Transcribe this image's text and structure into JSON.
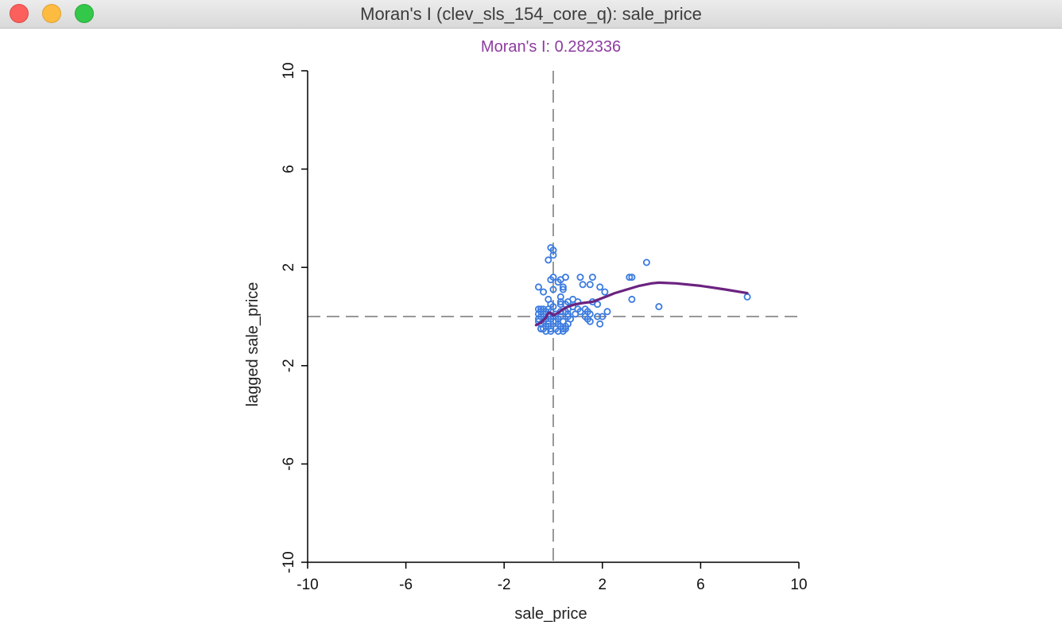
{
  "window": {
    "title": "Moran's I (clev_sls_154_core_q): sale_price",
    "controls": [
      "close",
      "minimize",
      "zoom"
    ]
  },
  "chart_data": {
    "type": "scatter",
    "title": "Moran's I: 0.282336",
    "xlabel": "sale_price",
    "ylabel": "lagged sale_price",
    "xlim": [
      -10,
      10
    ],
    "ylim": [
      -10,
      10
    ],
    "xticks": [
      -10,
      -6,
      -2,
      2,
      6,
      10
    ],
    "yticks": [
      -10,
      -6,
      -2,
      2,
      6,
      10
    ],
    "reference_lines": {
      "x": 0,
      "y": 0,
      "style": "dashed"
    },
    "grid": false,
    "legend": "none",
    "colors": {
      "points": "#3b7be0",
      "smoother": "#6b2380",
      "title": "#8e3ba0",
      "reference": "#777777"
    },
    "series": [
      {
        "kind": "points",
        "x": [
          -0.1,
          0.0,
          -0.2,
          0.0,
          0.5,
          0.0,
          -0.1,
          0.3,
          0.2,
          -0.6,
          0.4,
          0.4,
          -0.4,
          0.0,
          -0.2,
          0.3,
          1.1,
          1.6,
          1.5,
          3.1,
          3.2,
          3.8,
          1.2,
          1.9,
          2.1,
          3.2,
          4.3,
          7.9,
          1.4,
          1.6,
          1.8,
          1.1,
          1.3,
          1.5,
          2.0,
          2.2,
          0.3,
          0.8,
          1.0,
          0.5,
          0.8,
          1.0,
          0.6,
          0.3,
          0.9,
          1.3,
          0.6,
          0.7,
          1.4,
          1.5,
          1.9,
          1.8,
          -0.5,
          -0.2,
          0.0,
          0.3,
          0.6,
          -0.1,
          -0.6,
          -0.6,
          -0.6,
          -0.5,
          -0.5,
          -0.5,
          -0.4,
          -0.4,
          -0.4,
          -0.3,
          -0.3,
          -0.3,
          -0.2,
          -0.2,
          -0.1,
          -0.1,
          0.0,
          0.0,
          0.1,
          0.1,
          0.2,
          0.2,
          0.3,
          0.4,
          0.5,
          0.5,
          0.6,
          0.6,
          -0.6,
          -0.5,
          -0.4,
          -0.2,
          -0.1,
          0.1,
          0.3,
          0.4,
          -0.5,
          -0.3,
          -0.1,
          0.2,
          0.4,
          0.5
        ],
        "y": [
          2.8,
          2.7,
          2.3,
          2.5,
          1.6,
          1.6,
          1.5,
          1.5,
          1.4,
          1.2,
          1.2,
          1.1,
          1.0,
          1.1,
          0.7,
          0.8,
          1.6,
          1.6,
          1.3,
          1.6,
          1.6,
          2.2,
          1.3,
          1.2,
          1.0,
          0.7,
          0.4,
          0.8,
          0.2,
          0.6,
          0.5,
          0.2,
          0.3,
          0.1,
          0.0,
          0.2,
          0.6,
          0.7,
          0.6,
          0.5,
          0.4,
          0.3,
          0.3,
          0.2,
          0.1,
          0.0,
          0.0,
          -0.1,
          -0.1,
          -0.2,
          -0.3,
          0.0,
          0.3,
          0.3,
          0.4,
          0.5,
          0.6,
          0.5,
          0.3,
          0.1,
          -0.1,
          -0.3,
          0.2,
          0.0,
          -0.2,
          0.3,
          0.1,
          -0.1,
          -0.4,
          0.2,
          0.0,
          -0.3,
          0.2,
          -0.1,
          0.0,
          -0.2,
          0.1,
          -0.2,
          -0.1,
          -0.3,
          0.0,
          -0.2,
          0.2,
          -0.4,
          0.1,
          -0.3,
          -0.2,
          -0.5,
          -0.5,
          -0.4,
          -0.5,
          -0.5,
          -0.4,
          -0.5,
          -0.5,
          -0.6,
          -0.6,
          -0.6,
          -0.6,
          -0.5
        ]
      },
      {
        "kind": "smoother_line",
        "x": [
          -0.7,
          -0.5,
          -0.3,
          -0.2,
          -0.1,
          0.0,
          0.2,
          0.4,
          0.6,
          0.9,
          1.2,
          1.6,
          2.0,
          2.5,
          3.0,
          3.5,
          4.0,
          4.3,
          5.0,
          6.0,
          7.0,
          7.9
        ],
        "y": [
          -0.35,
          -0.25,
          -0.05,
          0.15,
          0.15,
          0.05,
          0.15,
          0.3,
          0.4,
          0.5,
          0.55,
          0.6,
          0.75,
          0.95,
          1.1,
          1.25,
          1.35,
          1.38,
          1.35,
          1.25,
          1.1,
          0.95
        ]
      }
    ]
  }
}
